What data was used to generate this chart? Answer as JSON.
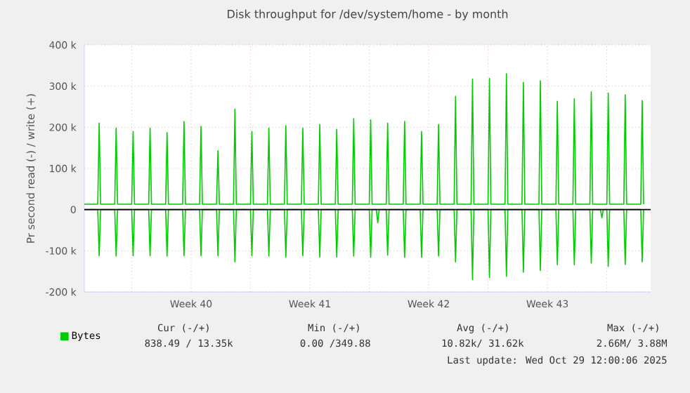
{
  "chart_data": {
    "type": "line",
    "title": "Disk throughput for /dev/system/home - by month",
    "ylabel": "Pr second read (-) / write (+)",
    "series": [
      {
        "name": "Bytes",
        "color": "#00cc00",
        "x": [
          "2025-09-26T05:00",
          "2025-09-27T00:00",
          "2025-09-27T02:00",
          "2025-09-27T04:00",
          "2025-09-28T00:00",
          "2025-09-28T02:00",
          "2025-09-28T04:00",
          "2025-09-29T00:00",
          "2025-09-29T02:00",
          "2025-09-29T04:00",
          "2025-09-30T00:00",
          "2025-09-30T02:00",
          "2025-09-30T04:00",
          "2025-10-01T00:00",
          "2025-10-01T02:00",
          "2025-10-01T04:00",
          "2025-10-02T00:00",
          "2025-10-02T02:00",
          "2025-10-02T04:00",
          "2025-10-03T00:00",
          "2025-10-03T02:00",
          "2025-10-03T04:00",
          "2025-10-04T00:00",
          "2025-10-04T02:00",
          "2025-10-04T04:00",
          "2025-10-05T00:00",
          "2025-10-05T02:00",
          "2025-10-05T04:00",
          "2025-10-06T00:00",
          "2025-10-06T02:00",
          "2025-10-06T04:00",
          "2025-10-07T00:00",
          "2025-10-07T02:00",
          "2025-10-07T04:00",
          "2025-10-08T00:00",
          "2025-10-08T02:00",
          "2025-10-08T04:00",
          "2025-10-09T00:00",
          "2025-10-09T02:00",
          "2025-10-09T04:00",
          "2025-10-10T00:00",
          "2025-10-10T02:00",
          "2025-10-10T04:00",
          "2025-10-11T00:00",
          "2025-10-11T02:00",
          "2025-10-11T04:00",
          "2025-10-12T00:00",
          "2025-10-12T02:00",
          "2025-10-12T04:00",
          "2025-10-13T00:00",
          "2025-10-13T02:00",
          "2025-10-13T04:00",
          "2025-10-14T00:00",
          "2025-10-14T02:00",
          "2025-10-14T04:00",
          "2025-10-15T00:00",
          "2025-10-15T02:00",
          "2025-10-15T04:00",
          "2025-10-16T00:00",
          "2025-10-16T02:00",
          "2025-10-16T04:00",
          "2025-10-17T00:00",
          "2025-10-17T02:00",
          "2025-10-17T04:00",
          "2025-10-18T00:00",
          "2025-10-18T02:00",
          "2025-10-18T04:00",
          "2025-10-19T00:00",
          "2025-10-19T02:00",
          "2025-10-19T04:00",
          "2025-10-20T00:00",
          "2025-10-20T02:00",
          "2025-10-20T04:00",
          "2025-10-21T00:00",
          "2025-10-21T02:00",
          "2025-10-21T04:00",
          "2025-10-22T00:00",
          "2025-10-22T02:00",
          "2025-10-22T04:00",
          "2025-10-23T00:00",
          "2025-10-23T02:00",
          "2025-10-23T04:00",
          "2025-10-24T00:00",
          "2025-10-24T02:00",
          "2025-10-24T04:00",
          "2025-10-25T00:00",
          "2025-10-25T02:00",
          "2025-10-25T04:00",
          "2025-10-26T00:00",
          "2025-10-26T02:00",
          "2025-10-26T04:00",
          "2025-10-27T00:00",
          "2025-10-27T02:00",
          "2025-10-27T04:00",
          "2025-10-28T00:00",
          "2025-10-28T02:00",
          "2025-10-28T04:00",
          "2025-10-29T00:00",
          "2025-10-29T02:00",
          "2025-10-29T04:00"
        ],
        "values": [
          13000,
          13000,
          210000,
          13000,
          13000,
          198000,
          13000,
          13000,
          190000,
          13000,
          13000,
          198000,
          13000,
          13000,
          187000,
          13000,
          13000,
          214000,
          13000,
          13000,
          202000,
          13000,
          13000,
          143000,
          13000,
          13000,
          244000,
          13000,
          13000,
          190000,
          13000,
          13000,
          198000,
          13000,
          13000,
          204000,
          13000,
          13000,
          198000,
          13000,
          13000,
          207000,
          13000,
          13000,
          195000,
          13000,
          13000,
          221000,
          13000,
          13000,
          218000,
          13000,
          13000,
          210000,
          13000,
          13000,
          214000,
          13000,
          13000,
          190000,
          13000,
          13000,
          207000,
          13000,
          13000,
          275000,
          13000,
          13000,
          317000,
          13000,
          13000,
          319000,
          13000,
          13000,
          330000,
          13000,
          13000,
          309000,
          13000,
          13000,
          313000,
          13000,
          13000,
          263000,
          13000,
          13000,
          269000,
          13000,
          13000,
          286000,
          13000,
          13000,
          283000,
          13000,
          13000,
          279000,
          13000,
          13000,
          265000,
          13000
        ]
      },
      {
        "color": "#00cc00",
        "x": [
          "2025-09-26T05:00",
          "2025-09-27T00:00",
          "2025-09-27T02:00",
          "2025-09-27T04:00",
          "2025-09-28T00:00",
          "2025-09-28T02:00",
          "2025-09-28T04:00",
          "2025-09-29T00:00",
          "2025-09-29T02:00",
          "2025-09-29T04:00",
          "2025-09-30T00:00",
          "2025-09-30T02:00",
          "2025-09-30T04:00",
          "2025-10-01T00:00",
          "2025-10-01T02:00",
          "2025-10-01T04:00",
          "2025-10-02T00:00",
          "2025-10-02T02:00",
          "2025-10-02T04:00",
          "2025-10-03T00:00",
          "2025-10-03T02:00",
          "2025-10-03T04:00",
          "2025-10-04T00:00",
          "2025-10-04T02:00",
          "2025-10-04T04:00",
          "2025-10-05T00:00",
          "2025-10-05T02:00",
          "2025-10-05T04:00",
          "2025-10-06T00:00",
          "2025-10-06T02:00",
          "2025-10-06T04:00",
          "2025-10-07T00:00",
          "2025-10-07T02:00",
          "2025-10-07T04:00",
          "2025-10-08T00:00",
          "2025-10-08T02:00",
          "2025-10-08T04:00",
          "2025-10-09T00:00",
          "2025-10-09T02:00",
          "2025-10-09T04:00",
          "2025-10-10T00:00",
          "2025-10-10T02:00",
          "2025-10-10T04:00",
          "2025-10-11T00:00",
          "2025-10-11T02:00",
          "2025-10-11T04:00",
          "2025-10-12T00:00",
          "2025-10-12T02:00",
          "2025-10-12T04:00",
          "2025-10-13T00:00",
          "2025-10-13T02:00",
          "2025-10-13T04:00",
          "2025-10-13T10:00",
          "2025-10-13T12:00",
          "2025-10-13T14:00",
          "2025-10-14T00:00",
          "2025-10-14T02:00",
          "2025-10-14T04:00",
          "2025-10-15T00:00",
          "2025-10-15T02:00",
          "2025-10-15T04:00",
          "2025-10-16T00:00",
          "2025-10-16T02:00",
          "2025-10-16T04:00",
          "2025-10-17T00:00",
          "2025-10-17T02:00",
          "2025-10-17T04:00",
          "2025-10-18T00:00",
          "2025-10-18T02:00",
          "2025-10-18T04:00",
          "2025-10-19T00:00",
          "2025-10-19T02:00",
          "2025-10-19T04:00",
          "2025-10-20T00:00",
          "2025-10-20T02:00",
          "2025-10-20T04:00",
          "2025-10-21T00:00",
          "2025-10-21T02:00",
          "2025-10-21T04:00",
          "2025-10-22T00:00",
          "2025-10-22T02:00",
          "2025-10-22T04:00",
          "2025-10-23T00:00",
          "2025-10-23T02:00",
          "2025-10-23T04:00",
          "2025-10-24T00:00",
          "2025-10-24T02:00",
          "2025-10-24T04:00",
          "2025-10-25T00:00",
          "2025-10-25T02:00",
          "2025-10-25T04:00",
          "2025-10-26T00:00",
          "2025-10-26T02:00",
          "2025-10-26T04:00",
          "2025-10-26T15:00",
          "2025-10-26T17:00",
          "2025-10-26T19:00",
          "2025-10-27T00:00",
          "2025-10-27T02:00",
          "2025-10-27T04:00",
          "2025-10-28T00:00",
          "2025-10-28T02:00",
          "2025-10-28T04:00",
          "2025-10-29T00:00",
          "2025-10-29T02:00",
          "2025-10-29T04:00"
        ],
        "values": [
          0,
          0,
          -112000,
          0,
          0,
          -113000,
          0,
          0,
          -112000,
          0,
          0,
          -112000,
          0,
          0,
          -113000,
          0,
          0,
          -112000,
          0,
          0,
          -112000,
          0,
          0,
          -112000,
          0,
          0,
          -127000,
          0,
          0,
          -112000,
          0,
          0,
          -113000,
          0,
          0,
          -115000,
          0,
          0,
          -112000,
          0,
          0,
          -115000,
          0,
          0,
          -115000,
          0,
          0,
          -113000,
          0,
          0,
          -116000,
          0,
          0,
          -32000,
          0,
          0,
          -111000,
          0,
          0,
          -116000,
          0,
          0,
          -116000,
          0,
          0,
          -113000,
          0,
          0,
          -127000,
          0,
          0,
          -170000,
          0,
          0,
          -165000,
          0,
          0,
          -162000,
          0,
          0,
          -152000,
          0,
          0,
          -148000,
          0,
          0,
          -134000,
          0,
          0,
          -134000,
          0,
          0,
          -130000,
          0,
          0,
          -20000,
          0,
          0,
          -138000,
          0,
          0,
          -133000,
          0,
          0,
          -127000,
          0
        ]
      }
    ],
    "xlim": [
      "2025-09-26T05:00",
      "2025-10-29T14:00"
    ],
    "xticks": [
      {
        "value": "2025-09-29",
        "label": null
      },
      {
        "value": "2025-10-02T12:00",
        "label": "Week 40"
      },
      {
        "value": "2025-10-06",
        "label": null
      },
      {
        "value": "2025-10-09T12:00",
        "label": "Week 41"
      },
      {
        "value": "2025-10-13",
        "label": null
      },
      {
        "value": "2025-10-16T12:00",
        "label": "Week 42"
      },
      {
        "value": "2025-10-20",
        "label": null
      },
      {
        "value": "2025-10-23T12:00",
        "label": "Week 43"
      },
      {
        "value": "2025-10-27",
        "label": null
      }
    ],
    "ylim": [
      -200000,
      400000
    ],
    "yticks": [
      {
        "value": -200000,
        "label": "-200 k"
      },
      {
        "value": -100000,
        "label": "-100 k"
      },
      0,
      {
        "value": 100000,
        "label": "100 k"
      },
      {
        "value": 200000,
        "label": "200 k"
      },
      {
        "value": 300000,
        "label": "300 k"
      },
      {
        "value": 400000,
        "label": "400 k"
      }
    ],
    "ref_lines": [
      {
        "axis": "y",
        "value": 0,
        "color": "#000000"
      }
    ],
    "grid": true,
    "legend": "bottom left",
    "marker": "none",
    "line_style": "solid",
    "annotations": [
      "Cur (-/+)",
      "Min (-/+)",
      "Avg (-/+)",
      "Max (-/+)",
      "838.49 / 13.35k",
      "0.00 /349.88",
      "10.82k/ 31.62k",
      "2.66M/  3.88M",
      "Last update: Wed Oct 29 12:00:06 2025"
    ]
  }
}
